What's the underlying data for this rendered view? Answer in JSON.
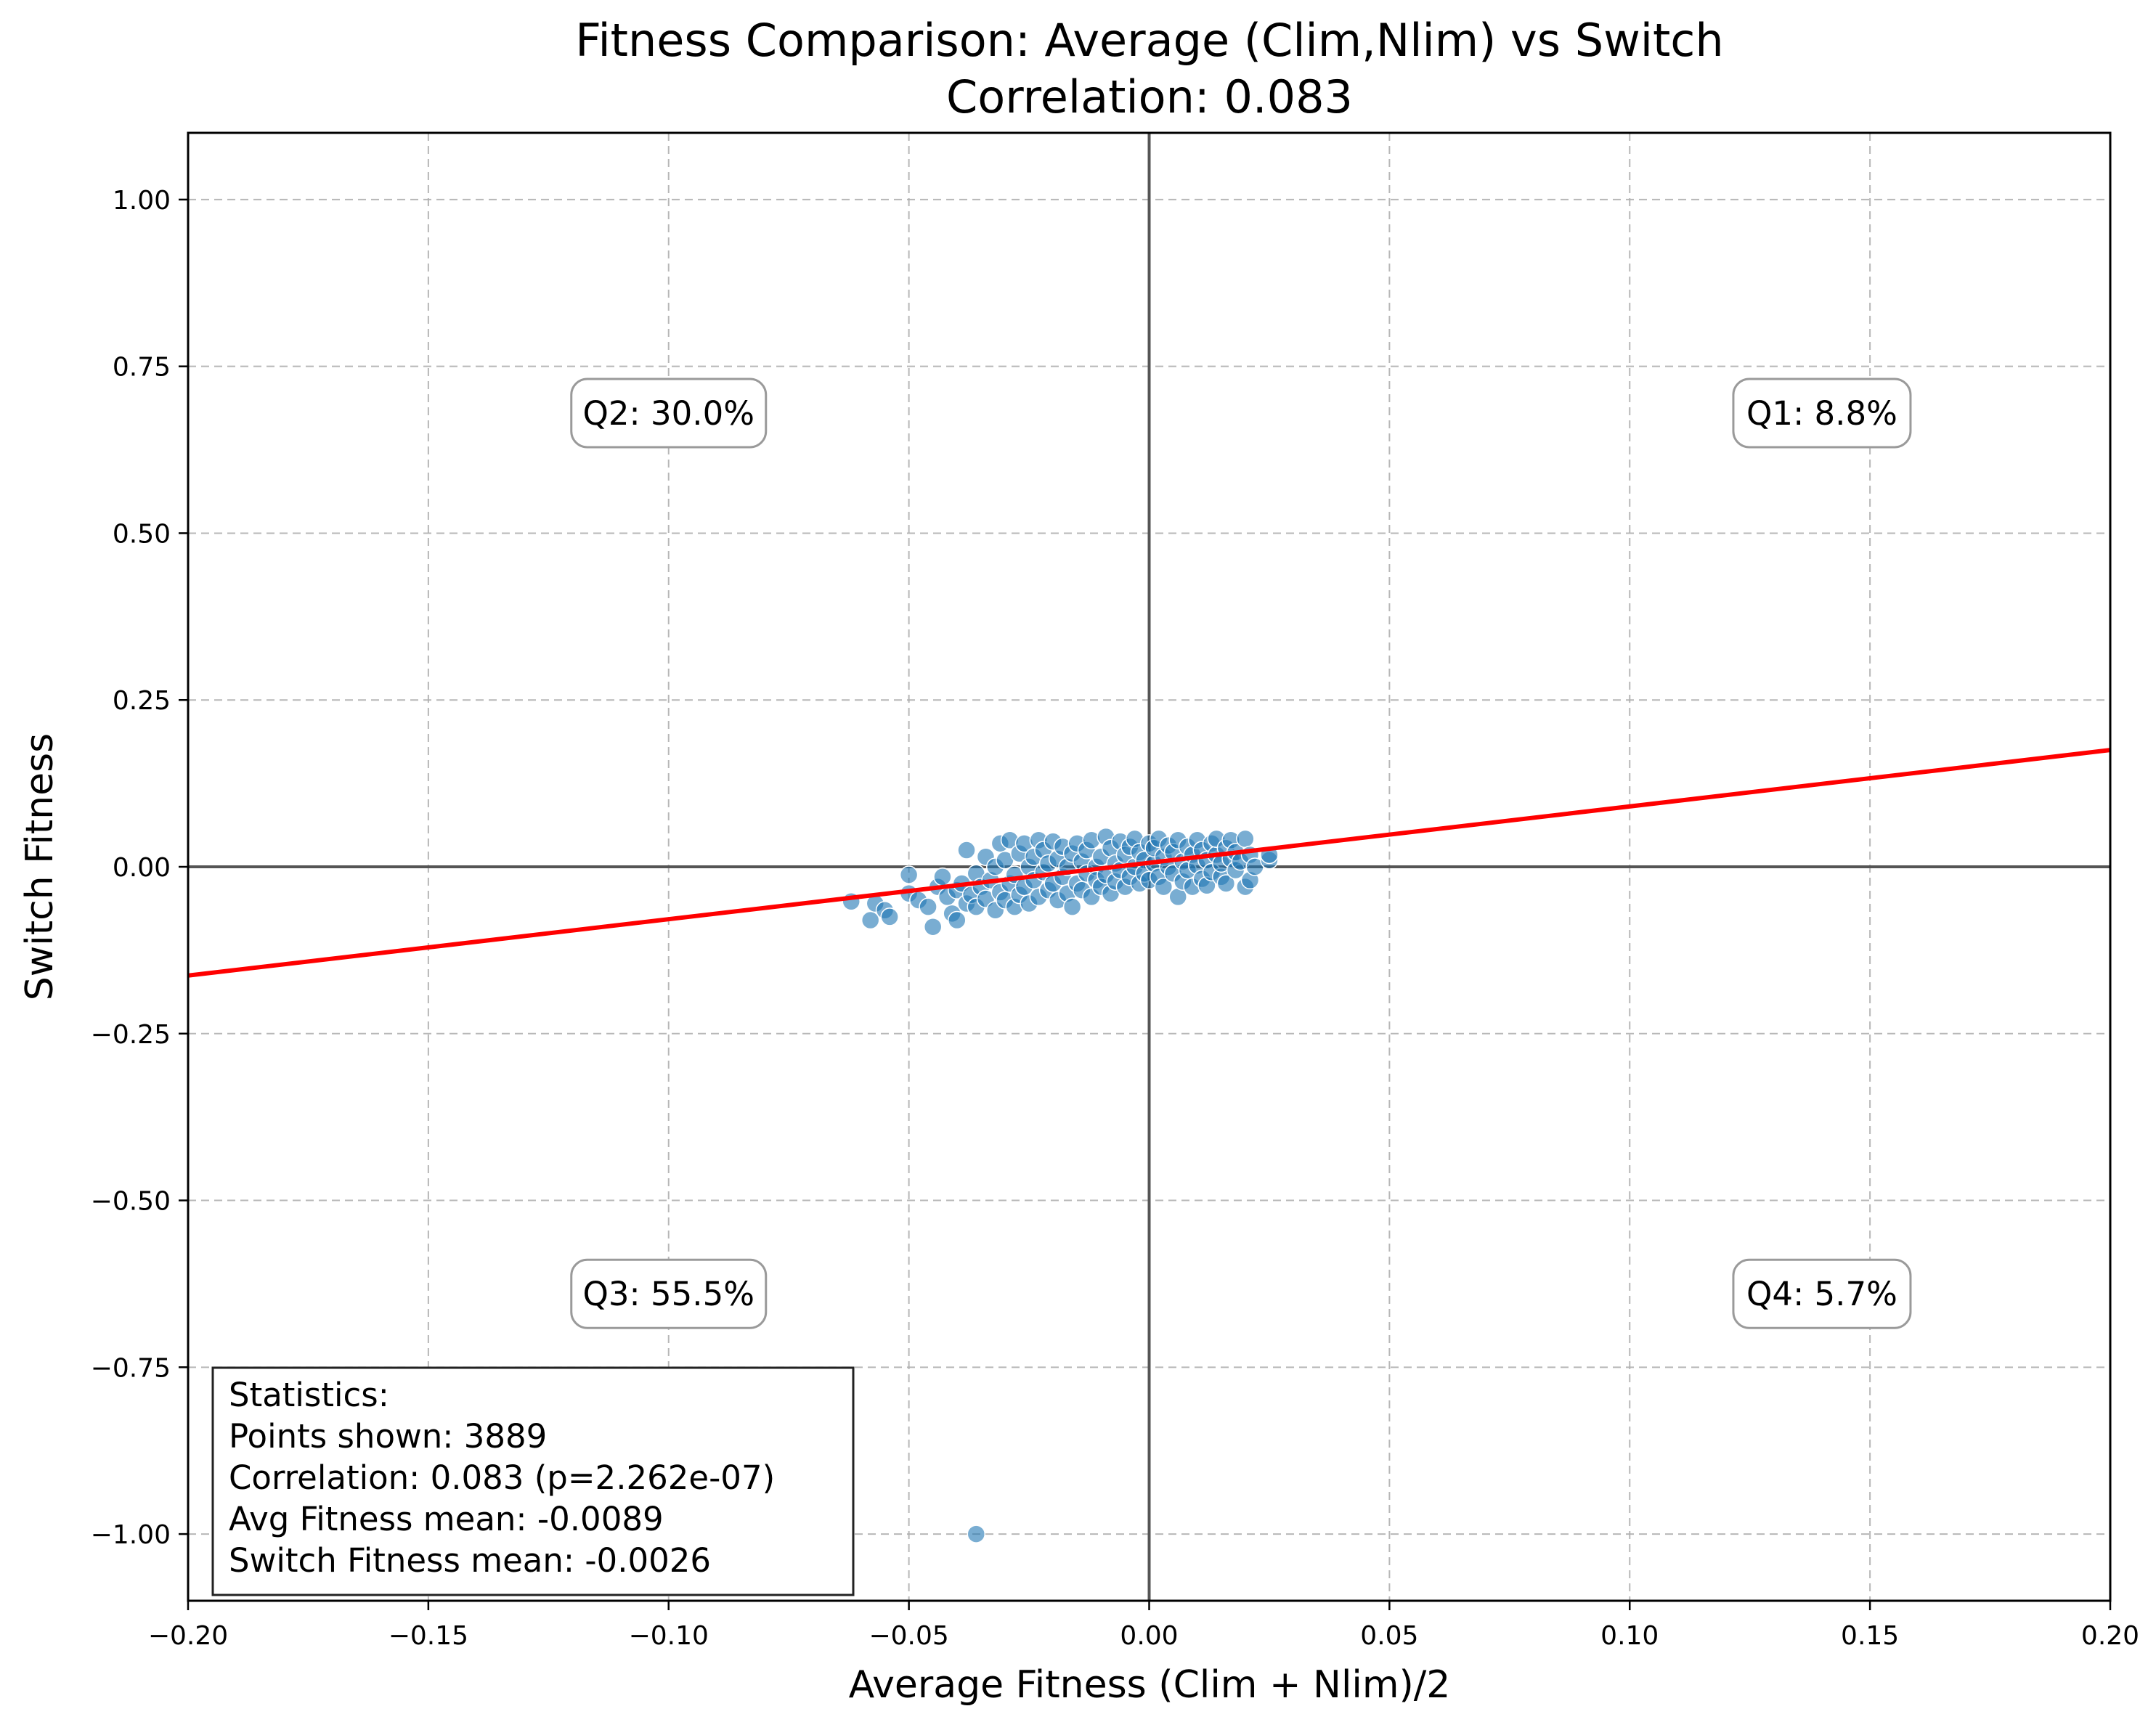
{
  "chart_data": {
    "type": "scatter",
    "title": "Fitness Comparison: Average (Clim,Nlim) vs Switch",
    "subtitle": "Correlation: 0.083",
    "xlabel": "Average Fitness (Clim + Nlim)/2",
    "ylabel": "Switch Fitness",
    "xlim": [
      -0.2,
      0.2
    ],
    "ylim": [
      -1.1,
      1.1
    ],
    "xticks": [
      -0.2,
      -0.15,
      -0.1,
      -0.05,
      0.0,
      0.05,
      0.1,
      0.15,
      0.2
    ],
    "xtick_labels": [
      "−0.20",
      "−0.15",
      "−0.10",
      "−0.05",
      "0.00",
      "0.05",
      "0.10",
      "0.15",
      "0.20"
    ],
    "yticks": [
      1.0,
      0.75,
      0.5,
      0.25,
      0.0,
      -0.25,
      -0.5,
      -0.75,
      -1.0
    ],
    "ytick_labels": [
      "1.00",
      "0.75",
      "0.50",
      "0.25",
      "0.00",
      "−0.25",
      "−0.50",
      "−0.75",
      "−1.00"
    ],
    "grid": true,
    "colors": {
      "points": "#1f77b4",
      "fit_line": "#ff0000",
      "zero_lines": "#555555"
    },
    "fit_line": {
      "x": [
        -0.2,
        0.2
      ],
      "y": [
        -0.163,
        0.175
      ]
    },
    "quadrant_labels": [
      {
        "text": "Q1: 8.8%",
        "x": 0.14,
        "y": 0.68
      },
      {
        "text": "Q2: 30.0%",
        "x": -0.1,
        "y": 0.68
      },
      {
        "text": "Q3: 55.5%",
        "x": -0.1,
        "y": -0.64
      },
      {
        "text": "Q4: 5.7%",
        "x": 0.14,
        "y": -0.64
      }
    ],
    "stats_box": {
      "lines": [
        "Statistics:",
        "Points shown: 3889",
        "Correlation: 0.083 (p=2.262e-07)",
        "Avg Fitness mean: -0.0089",
        "Switch Fitness mean: -0.0026"
      ]
    },
    "points": [
      [
        -0.062,
        -0.052
      ],
      [
        -0.058,
        -0.08
      ],
      [
        -0.057,
        -0.055
      ],
      [
        -0.055,
        -0.065
      ],
      [
        -0.054,
        -0.075
      ],
      [
        -0.05,
        -0.012
      ],
      [
        -0.05,
        -0.04
      ],
      [
        -0.048,
        -0.05
      ],
      [
        -0.046,
        -0.06
      ],
      [
        -0.045,
        -0.09
      ],
      [
        -0.044,
        -0.03
      ],
      [
        -0.043,
        -0.015
      ],
      [
        -0.042,
        -0.045
      ],
      [
        -0.041,
        -0.07
      ],
      [
        -0.04,
        -0.08
      ],
      [
        -0.04,
        -0.035
      ],
      [
        -0.039,
        -0.025
      ],
      [
        -0.038,
        0.025
      ],
      [
        -0.038,
        -0.055
      ],
      [
        -0.037,
        -0.042
      ],
      [
        -0.036,
        -0.01
      ],
      [
        -0.036,
        -0.06
      ],
      [
        -0.035,
        -0.03
      ],
      [
        -0.034,
        0.015
      ],
      [
        -0.034,
        -0.048
      ],
      [
        -0.033,
        -0.02
      ],
      [
        -0.032,
        -0.065
      ],
      [
        -0.032,
        0.0
      ],
      [
        -0.031,
        0.035
      ],
      [
        -0.031,
        -0.038
      ],
      [
        -0.03,
        -0.05
      ],
      [
        -0.03,
        0.01
      ],
      [
        -0.029,
        -0.025
      ],
      [
        -0.029,
        0.04
      ],
      [
        -0.028,
        -0.06
      ],
      [
        -0.028,
        -0.012
      ],
      [
        -0.027,
        0.02
      ],
      [
        -0.027,
        -0.042
      ],
      [
        -0.026,
        0.035
      ],
      [
        -0.026,
        -0.03
      ],
      [
        -0.025,
        0.0
      ],
      [
        -0.025,
        -0.055
      ],
      [
        -0.024,
        0.015
      ],
      [
        -0.024,
        -0.02
      ],
      [
        -0.023,
        0.04
      ],
      [
        -0.023,
        -0.045
      ],
      [
        -0.022,
        -0.008
      ],
      [
        -0.022,
        0.025
      ],
      [
        -0.021,
        -0.035
      ],
      [
        -0.021,
        0.005
      ],
      [
        -0.02,
        -0.025
      ],
      [
        -0.02,
        0.038
      ],
      [
        -0.019,
        -0.05
      ],
      [
        -0.019,
        0.012
      ],
      [
        -0.018,
        -0.015
      ],
      [
        -0.018,
        0.03
      ],
      [
        -0.017,
        -0.04
      ],
      [
        -0.017,
        0.0
      ],
      [
        -0.016,
        0.02
      ],
      [
        -0.016,
        -0.06
      ],
      [
        -0.015,
        -0.025
      ],
      [
        -0.015,
        0.035
      ],
      [
        -0.014,
        0.008
      ],
      [
        -0.014,
        -0.035
      ],
      [
        -0.013,
        -0.01
      ],
      [
        -0.013,
        0.025
      ],
      [
        -0.012,
        -0.045
      ],
      [
        -0.012,
        0.04
      ],
      [
        -0.011,
        0.0
      ],
      [
        -0.011,
        -0.02
      ],
      [
        -0.01,
        0.015
      ],
      [
        -0.01,
        -0.03
      ],
      [
        -0.009,
        0.045
      ],
      [
        -0.009,
        -0.012
      ],
      [
        -0.008,
        0.028
      ],
      [
        -0.008,
        -0.04
      ],
      [
        -0.007,
        0.005
      ],
      [
        -0.007,
        -0.022
      ],
      [
        -0.006,
        0.038
      ],
      [
        -0.006,
        -0.005
      ],
      [
        -0.005,
        0.018
      ],
      [
        -0.005,
        -0.03
      ],
      [
        -0.004,
        0.03
      ],
      [
        -0.004,
        -0.015
      ],
      [
        -0.003,
        0.042
      ],
      [
        -0.003,
        0.0
      ],
      [
        -0.002,
        -0.025
      ],
      [
        -0.002,
        0.022
      ],
      [
        -0.001,
        0.01
      ],
      [
        -0.001,
        -0.01
      ],
      [
        0.0,
        0.035
      ],
      [
        0.0,
        -0.02
      ],
      [
        0.001,
        0.005
      ],
      [
        0.001,
        0.028
      ],
      [
        0.002,
        -0.015
      ],
      [
        0.002,
        0.042
      ],
      [
        0.003,
        0.015
      ],
      [
        0.003,
        -0.03
      ],
      [
        0.004,
        0.0
      ],
      [
        0.004,
        0.032
      ],
      [
        0.005,
        -0.01
      ],
      [
        0.005,
        0.022
      ],
      [
        0.006,
        -0.045
      ],
      [
        0.006,
        0.04
      ],
      [
        0.007,
        0.008
      ],
      [
        0.007,
        -0.022
      ],
      [
        0.008,
        0.03
      ],
      [
        0.008,
        -0.005
      ],
      [
        0.009,
        0.018
      ],
      [
        0.009,
        -0.03
      ],
      [
        0.01,
        0.04
      ],
      [
        0.01,
        0.002
      ],
      [
        0.011,
        -0.018
      ],
      [
        0.011,
        0.025
      ],
      [
        0.012,
        0.01
      ],
      [
        0.012,
        -0.028
      ],
      [
        0.013,
        0.035
      ],
      [
        0.013,
        -0.008
      ],
      [
        0.014,
        0.018
      ],
      [
        0.014,
        0.042
      ],
      [
        0.015,
        -0.015
      ],
      [
        0.015,
        0.005
      ],
      [
        0.016,
        0.028
      ],
      [
        0.016,
        -0.025
      ],
      [
        0.017,
        0.012
      ],
      [
        0.017,
        0.04
      ],
      [
        0.018,
        -0.005
      ],
      [
        0.018,
        0.022
      ],
      [
        0.019,
        0.008
      ],
      [
        0.02,
        -0.03
      ],
      [
        0.02,
        0.042
      ],
      [
        0.021,
        -0.02
      ],
      [
        0.021,
        0.018
      ],
      [
        0.022,
        0.0
      ],
      [
        0.025,
        0.01
      ],
      [
        0.025,
        0.018
      ],
      [
        -0.036,
        -1.0
      ]
    ]
  }
}
